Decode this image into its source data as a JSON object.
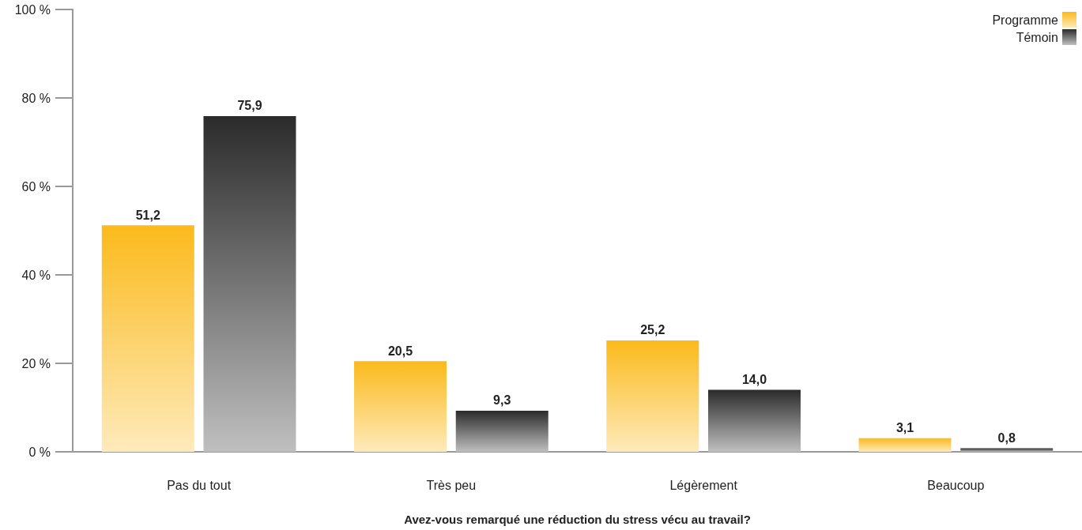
{
  "chart_data": {
    "type": "bar",
    "xlabel": "Avez-vous remarqué une réduction du stress vécu au travail?",
    "categories": [
      "Pas du tout",
      "Très peu",
      "Légèrement",
      "Beaucoup"
    ],
    "series": [
      {
        "name": "Programme",
        "color": "#fbba1c",
        "values": [
          51.2,
          20.5,
          25.2,
          3.1
        ],
        "value_labels": [
          "51,2",
          "20,5",
          "25,2",
          "3,1"
        ]
      },
      {
        "name": "Témoin",
        "color": "#2b2b2b",
        "values": [
          75.9,
          9.3,
          14.0,
          0.8
        ],
        "value_labels": [
          "75,9",
          "9,3",
          "14,0",
          "0,8"
        ]
      }
    ],
    "ylim": [
      0,
      100
    ],
    "yticks": [
      {
        "value": 0,
        "label": "0 %"
      },
      {
        "value": 20,
        "label": "20 %"
      },
      {
        "value": 40,
        "label": "40 %"
      },
      {
        "value": 60,
        "label": "60 %"
      },
      {
        "value": 80,
        "label": "80 %"
      },
      {
        "value": 100,
        "label": "100 %"
      }
    ],
    "grid": false,
    "legend": "top right"
  }
}
